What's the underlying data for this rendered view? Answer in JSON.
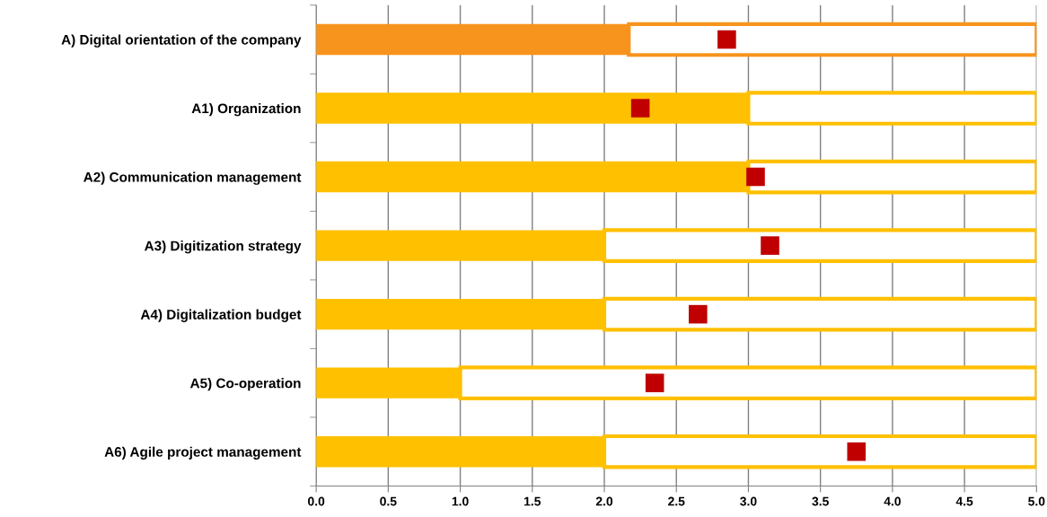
{
  "chart_data": {
    "type": "bar",
    "orientation": "horizontal",
    "stacked": true,
    "categories": [
      "A) Digital orientation of the company",
      "A1) Organization",
      "A2) Communication management",
      "A3) Digitization strategy",
      "A4) Digitalization budget",
      "A5) Co-operation",
      "A6) Agile project management"
    ],
    "series": [
      {
        "colors": [
          "#f7941d",
          "#ffc000",
          "#ffc000",
          "#ffc000",
          "#ffc000",
          "#ffc000",
          "#ffc000"
        ],
        "values": [
          2.17,
          3.0,
          3.0,
          2.0,
          2.0,
          1.0,
          2.0
        ]
      },
      {
        "colors": [
          "#f7941d",
          "#ffc000",
          "#ffc000",
          "#ffc000",
          "#ffc000",
          "#ffc000",
          "#ffc000"
        ],
        "values": [
          2.83,
          2.0,
          2.0,
          3.0,
          3.0,
          4.0,
          3.0
        ]
      },
      {
        "type": "scatter",
        "marker": "square",
        "color": "#c00000",
        "values": [
          2.85,
          2.25,
          3.05,
          3.15,
          2.65,
          2.35,
          3.75
        ]
      }
    ],
    "xlim": [
      0,
      5
    ],
    "xticks": [
      {
        "value": 0,
        "label": "0.0"
      },
      {
        "value": 0.5,
        "label": "0.5"
      },
      {
        "value": 1,
        "label": "1.0"
      },
      {
        "value": 1.5,
        "label": "1.5"
      },
      {
        "value": 2,
        "label": "2.0"
      },
      {
        "value": 2.5,
        "label": "2.5"
      },
      {
        "value": 3,
        "label": "3.0"
      },
      {
        "value": 3.5,
        "label": "3.5"
      },
      {
        "value": 4,
        "label": "4.0"
      },
      {
        "value": 4.5,
        "label": "4.5"
      },
      {
        "value": 5,
        "label": "5.0"
      }
    ],
    "grid": "x"
  }
}
